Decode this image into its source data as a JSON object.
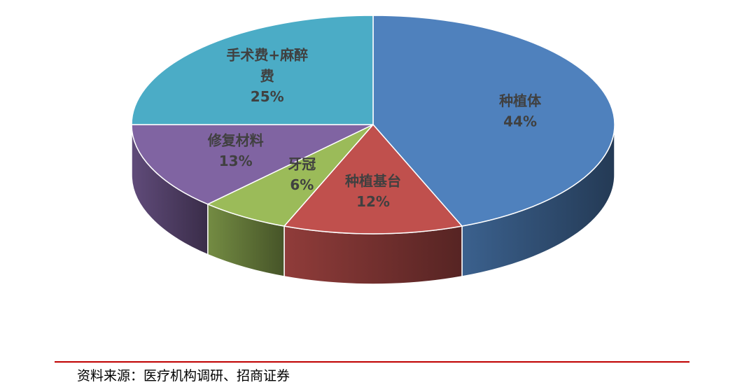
{
  "chart_data": {
    "type": "pie",
    "categories": [
      "种植体",
      "种植基台",
      "牙冠",
      "修复材料",
      "手术费+麻醉费"
    ],
    "values": [
      44,
      12,
      6,
      13,
      25
    ],
    "value_labels": [
      "44%",
      "12%",
      "6%",
      "13%",
      "25%"
    ],
    "colors": [
      "#4f81bd",
      "#c0504d",
      "#9bbb59",
      "#8064a2",
      "#4bacc6"
    ],
    "source": "资料来源：医疗机构调研、招商证券"
  }
}
